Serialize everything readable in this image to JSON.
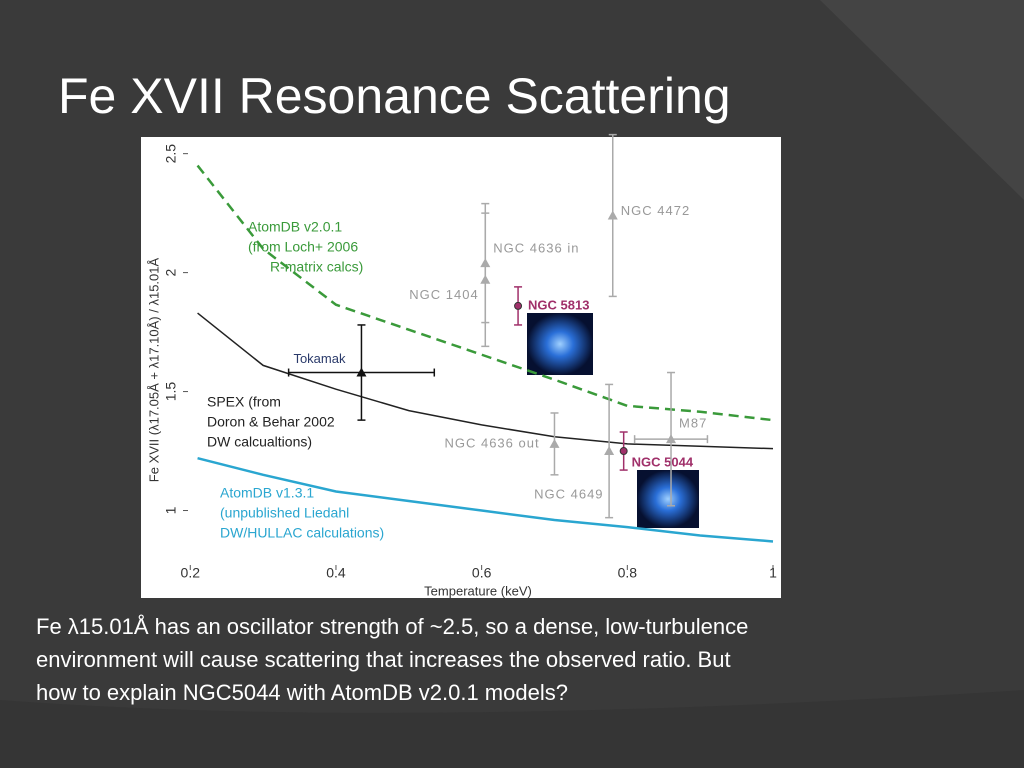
{
  "title": "Fe XVII Resonance Scattering",
  "body": [
    "Fe λ15.01Å has an oscillator strength of ~2.5, so a dense, low-turbulence",
    "environment will cause scattering that increases the observed ratio.  But",
    "how to explain NGC5044 with AtomDB v2.0.1 models?"
  ],
  "chart_data": {
    "type": "line",
    "x_label": "Temperature (keV)",
    "y_label": "Fe XVII (λ17.05Å + λ17.10Å) / λ15.01Å",
    "xlim": [
      0.19,
      1.0
    ],
    "ylim": [
      0.75,
      2.57
    ],
    "xticks": [
      0.2,
      0.4,
      0.6,
      0.8,
      1
    ],
    "yticks": [
      1,
      1.5,
      2,
      2.5
    ],
    "x": [
      0.21,
      0.3,
      0.4,
      0.5,
      0.6,
      0.7,
      0.8,
      0.9,
      1.0
    ],
    "series": [
      {
        "name": [
          "AtomDB v2.0.1",
          "(from Loch+ 2006",
          "R-matrix calcs)"
        ],
        "color": "#3a9a3a",
        "dashed": true,
        "values": [
          2.45,
          2.1,
          1.865,
          1.76,
          1.655,
          1.55,
          1.44,
          1.415,
          1.38
        ]
      },
      {
        "name": [
          "SPEX (from",
          "Doron & Behar 2002",
          "DW calcualtions)"
        ],
        "color": "#222222",
        "dashed": false,
        "values": [
          1.83,
          1.61,
          1.51,
          1.42,
          1.36,
          1.31,
          1.28,
          1.27,
          1.26
        ]
      },
      {
        "name": [
          "AtomDB v1.3.1",
          "(unpublished Liedahl",
          "DW/HULLAC calculations)"
        ],
        "color": "#2aa6d0",
        "dashed": false,
        "values": [
          1.22,
          1.15,
          1.08,
          1.04,
          1.0,
          0.96,
          0.93,
          0.895,
          0.87
        ]
      }
    ],
    "points": [
      {
        "name": "Tokamak",
        "x": 0.435,
        "y": 1.58,
        "yerr": 0.2,
        "xerr": 0.1,
        "color": "#111111"
      },
      {
        "name": "NGC 4472",
        "x": 0.78,
        "y": 2.24,
        "yerr": 0.34,
        "color": "#aaaaaa"
      },
      {
        "name": "NGC 4636 in",
        "x": 0.605,
        "y": 2.04,
        "yerr": 0.25,
        "color": "#aaaaaa"
      },
      {
        "name": "NGC 1404",
        "x": 0.605,
        "y": 1.97,
        "yerr": 0.28,
        "color": "#aaaaaa"
      },
      {
        "name": "NGC 5813",
        "x": 0.65,
        "y": 1.86,
        "yerr": 0.08,
        "color": "#a0306a"
      },
      {
        "name": "NGC 4636 out",
        "x": 0.7,
        "y": 1.28,
        "yerr": 0.13,
        "color": "#aaaaaa"
      },
      {
        "name": "NGC 4649",
        "x": 0.775,
        "y": 1.25,
        "yerr": 0.28,
        "color": "#aaaaaa"
      },
      {
        "name": "NGC 5044",
        "x": 0.795,
        "y": 1.25,
        "yerr": 0.08,
        "color": "#a0306a"
      },
      {
        "name": "M87",
        "x": 0.86,
        "y": 1.3,
        "yerr": 0.28,
        "xerr": 0.05,
        "color": "#aaaaaa"
      }
    ]
  }
}
